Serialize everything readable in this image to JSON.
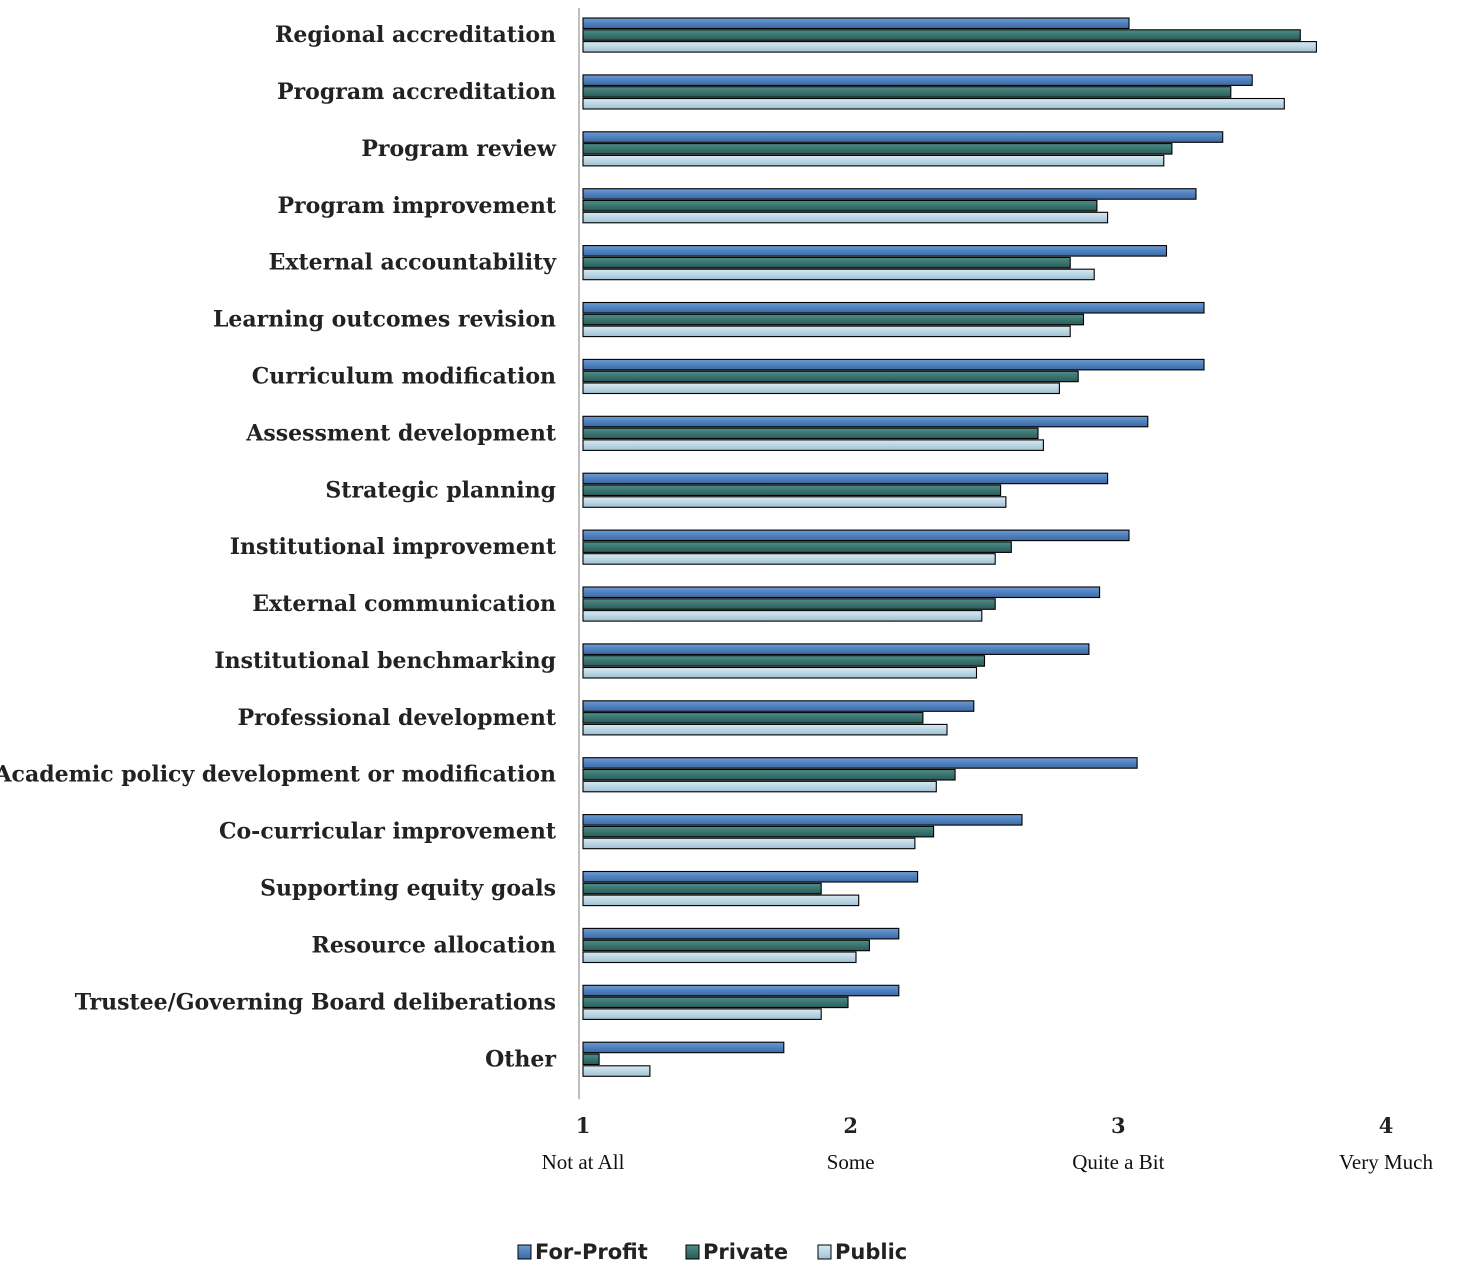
{
  "chart_data": {
    "type": "bar",
    "orientation": "horizontal",
    "title": "",
    "xlabel": "",
    "ylabel": "",
    "xlim": [
      1,
      4
    ],
    "grid": false,
    "legend_position": "bottom",
    "x_ticks": [
      {
        "value": 1,
        "label": "1",
        "sublabel": "Not at All"
      },
      {
        "value": 2,
        "label": "2",
        "sublabel": "Some"
      },
      {
        "value": 3,
        "label": "3",
        "sublabel": "Quite a Bit"
      },
      {
        "value": 4,
        "label": "4",
        "sublabel": "Very Much"
      }
    ],
    "categories": [
      "Regional accreditation",
      "Program accreditation",
      "Program review",
      "Program improvement",
      "External accountability",
      "Learning outcomes revision",
      "Curriculum modification",
      "Assessment development",
      "Strategic planning",
      "Institutional improvement",
      "External communication",
      "Institutional benchmarking",
      "Professional development",
      "Academic policy development or modification",
      "Co-curricular improvement",
      "Supporting equity goals",
      "Resource allocation",
      "Trustee/Governing Board deliberations",
      "Other"
    ],
    "series": [
      {
        "name": "For-Profit",
        "color": "#4f81bd",
        "values": [
          3.04,
          3.5,
          3.39,
          3.29,
          3.18,
          3.32,
          3.32,
          3.11,
          2.96,
          3.04,
          2.93,
          2.89,
          2.46,
          3.07,
          2.64,
          2.25,
          2.18,
          2.18,
          1.75
        ]
      },
      {
        "name": "Private",
        "color": "#3a7470",
        "values": [
          3.68,
          3.42,
          3.2,
          2.92,
          2.82,
          2.87,
          2.85,
          2.7,
          2.56,
          2.6,
          2.54,
          2.5,
          2.27,
          2.39,
          2.31,
          1.89,
          2.07,
          1.99,
          1.06
        ]
      },
      {
        "name": "Public",
        "color": "#bcd6e4",
        "values": [
          3.74,
          3.62,
          3.17,
          2.96,
          2.91,
          2.82,
          2.78,
          2.72,
          2.58,
          2.54,
          2.49,
          2.47,
          2.36,
          2.32,
          2.24,
          2.03,
          2.02,
          1.89,
          1.25
        ]
      }
    ]
  }
}
